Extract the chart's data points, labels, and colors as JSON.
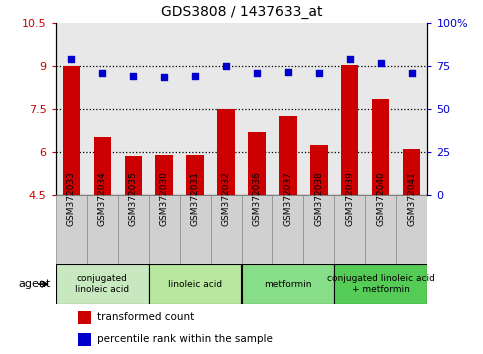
{
  "title": "GDS3808 / 1437633_at",
  "samples": [
    "GSM372033",
    "GSM372034",
    "GSM372035",
    "GSM372030",
    "GSM372031",
    "GSM372032",
    "GSM372036",
    "GSM372037",
    "GSM372038",
    "GSM372039",
    "GSM372040",
    "GSM372041"
  ],
  "bar_values": [
    9.0,
    6.5,
    5.85,
    5.9,
    5.9,
    7.5,
    6.7,
    7.25,
    6.25,
    9.05,
    7.85,
    6.1
  ],
  "scatter_values_left": [
    9.25,
    8.75,
    8.65,
    8.6,
    8.65,
    9.0,
    8.75,
    8.8,
    8.75,
    9.25,
    9.1,
    8.75
  ],
  "bar_color": "#cc0000",
  "scatter_color": "#0000cc",
  "ylim_left": [
    4.5,
    10.5
  ],
  "ylim_right": [
    0,
    100
  ],
  "yticks_left": [
    4.5,
    6.0,
    7.5,
    9.0,
    10.5
  ],
  "yticks_left_labels": [
    "4.5",
    "6",
    "7.5",
    "9",
    "10.5"
  ],
  "yticks_right": [
    0,
    25,
    50,
    75,
    100
  ],
  "yticks_right_labels": [
    "0",
    "25",
    "50",
    "75",
    "100%"
  ],
  "hlines": [
    6.0,
    7.5,
    9.0
  ],
  "agent_groups": [
    {
      "label": "conjugated\nlinoleic acid",
      "start": 0,
      "end": 3,
      "color": "#c8e8c0"
    },
    {
      "label": "linoleic acid",
      "start": 3,
      "end": 6,
      "color": "#b8e8a0"
    },
    {
      "label": "metformin",
      "start": 6,
      "end": 9,
      "color": "#88dd88"
    },
    {
      "label": "conjugated linoleic acid\n+ metformin",
      "start": 9,
      "end": 12,
      "color": "#55cc55"
    }
  ],
  "legend_items": [
    {
      "label": "transformed count",
      "color": "#cc0000"
    },
    {
      "label": "percentile rank within the sample",
      "color": "#0000cc"
    }
  ],
  "agent_label": "agent",
  "plot_bg": "#e8e8e8",
  "sample_box_bg": "#d0d0d0",
  "bar_width": 0.55
}
